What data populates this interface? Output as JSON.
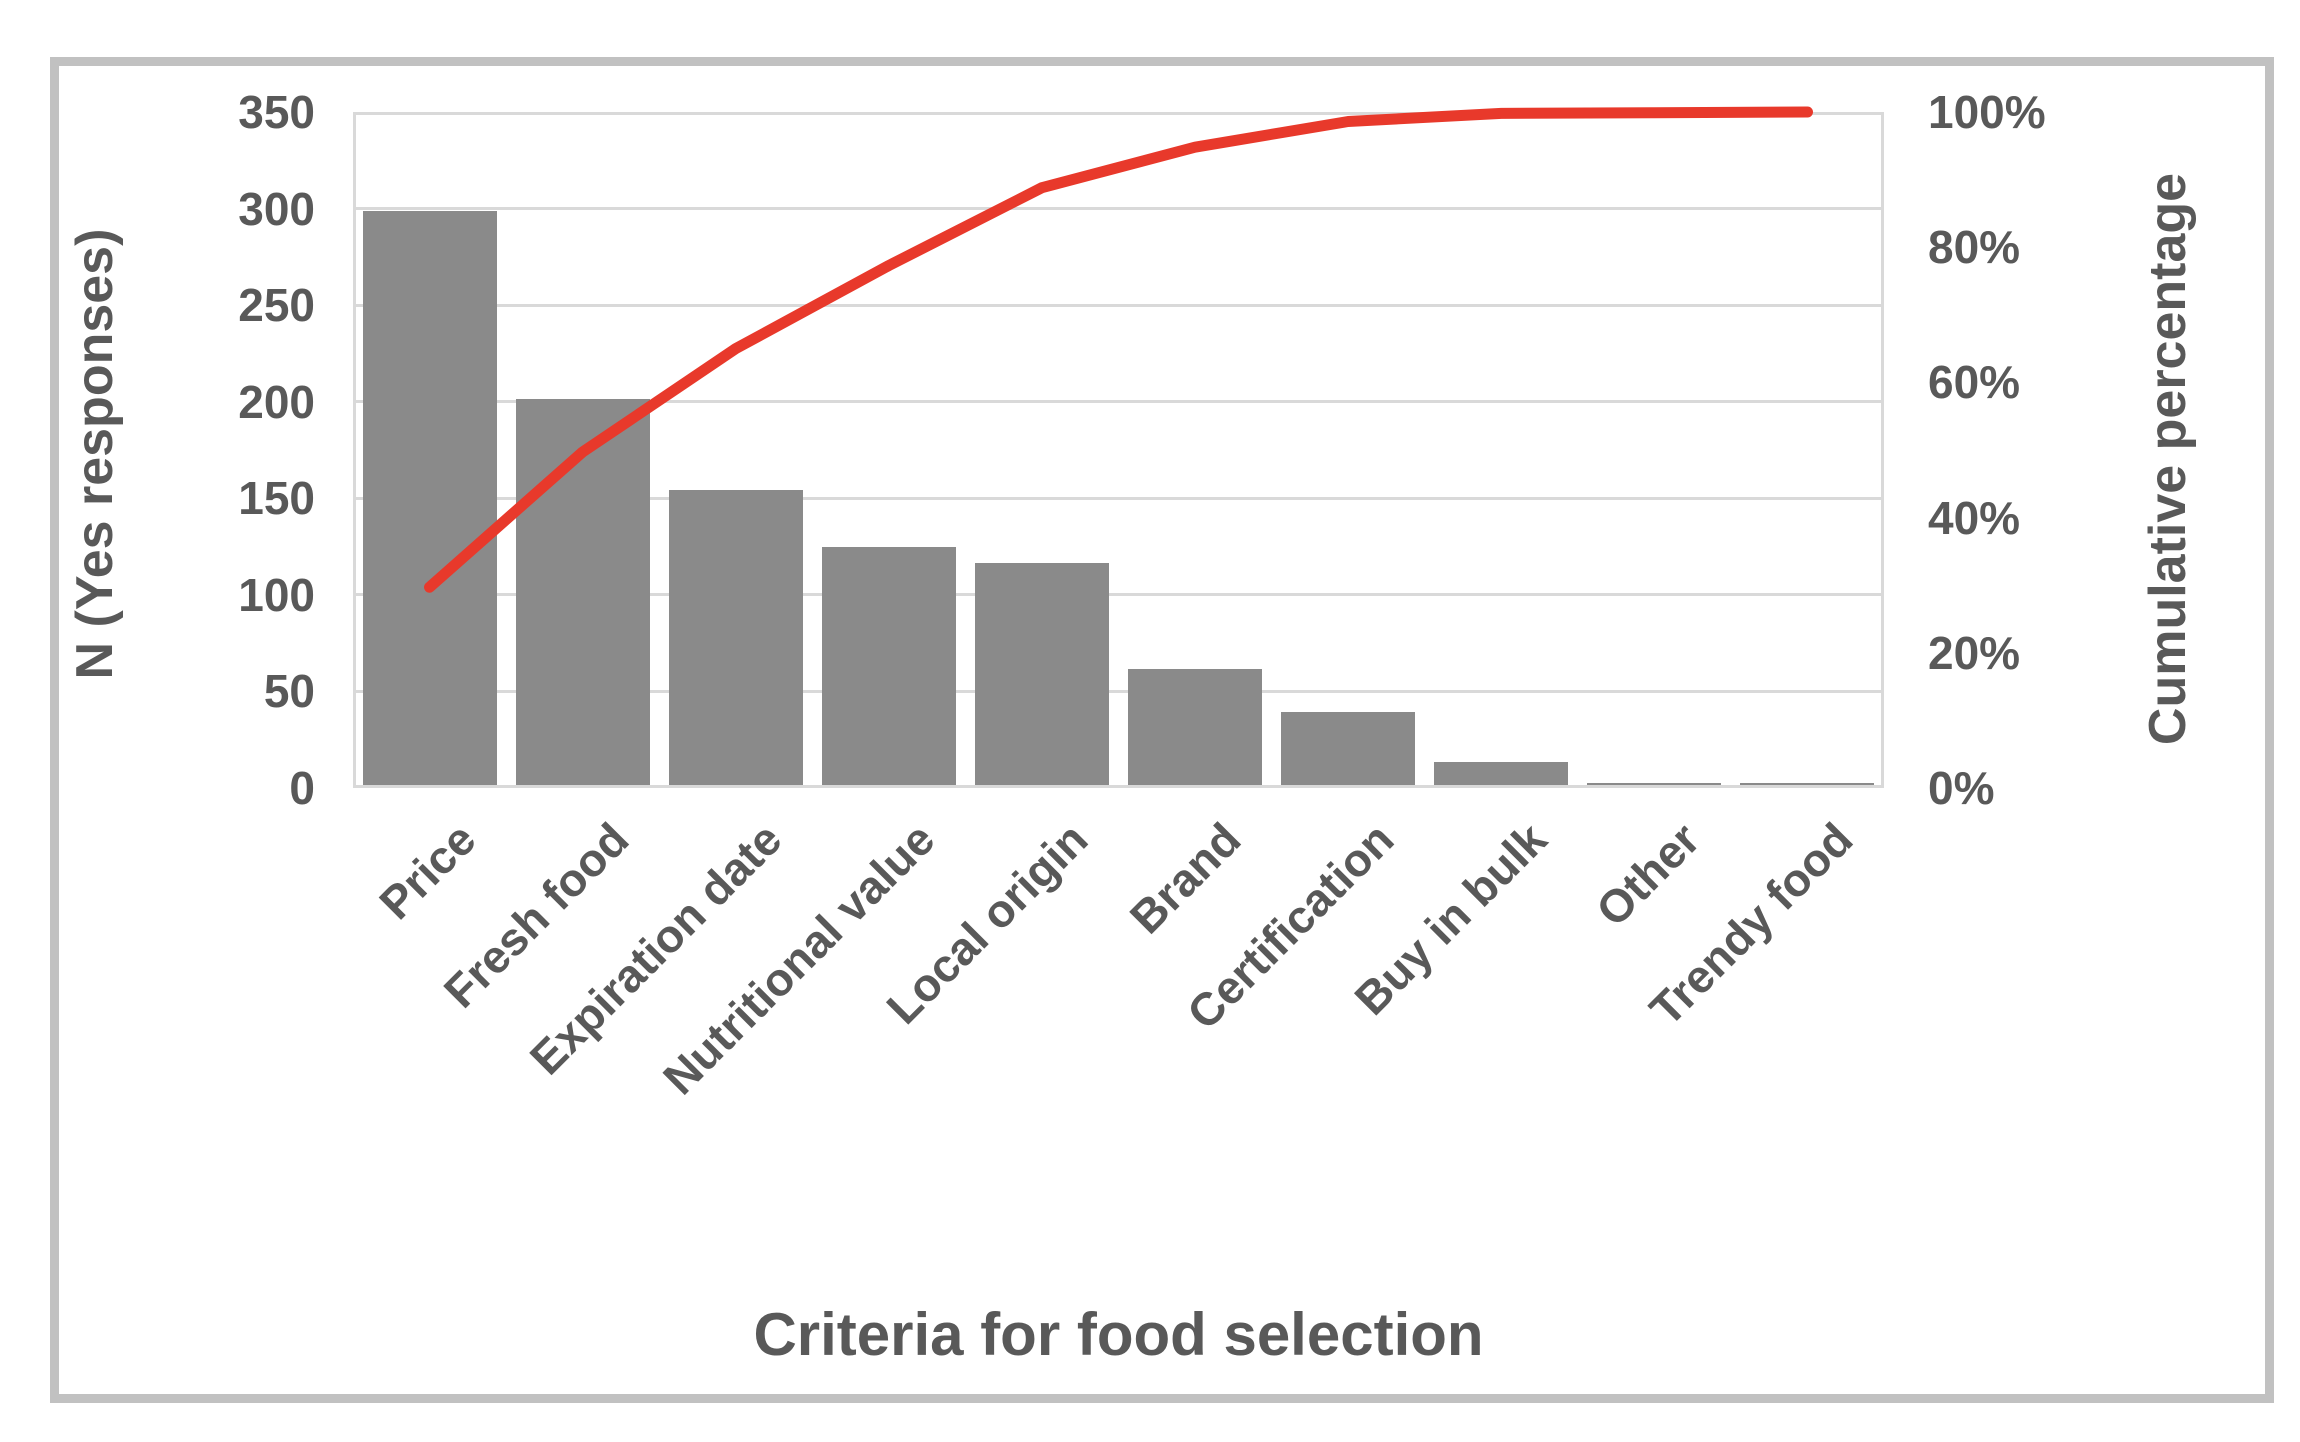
{
  "chart_data": {
    "type": "pareto (bar + cumulative line)",
    "categories": [
      "Price",
      "Fresh food",
      "Expiration date",
      "Nutritional value",
      "Local origin",
      "Brand",
      "Certification",
      "Buy in bulk",
      "Other",
      "Trendy food"
    ],
    "series": [
      {
        "name": "N (Yes responses)",
        "type": "bar",
        "values": [
          297,
          200,
          153,
          123,
          115,
          60,
          38,
          12,
          1,
          1
        ]
      },
      {
        "name": "Cumulative percentage",
        "type": "line",
        "values_pct": [
          29.7,
          49.7,
          65.0,
          77.3,
          88.8,
          94.8,
          98.6,
          99.8,
          99.9,
          100.0
        ]
      }
    ],
    "left_axis": {
      "title": "N (Yes responses)",
      "min": 0,
      "max": 350,
      "step": 50,
      "tick_labels": [
        "350",
        "300",
        "250",
        "200",
        "150",
        "100",
        "50",
        "0"
      ]
    },
    "right_axis": {
      "title": "Cumulative percentage",
      "min_pct": 0,
      "max_pct": 100,
      "step_pct": 20,
      "tick_labels": [
        "100%",
        "80%",
        "60%",
        "40%",
        "20%",
        "0%"
      ]
    },
    "x_axis": {
      "title": "Criteria for food selection"
    },
    "grid": true,
    "legend": false
  },
  "colors": {
    "bar": "#8a8a8a",
    "line": "#e8392b",
    "grid": "#d9d9d9",
    "text": "#595959",
    "frame": "#c1c1c1",
    "background": "#ffffff"
  }
}
